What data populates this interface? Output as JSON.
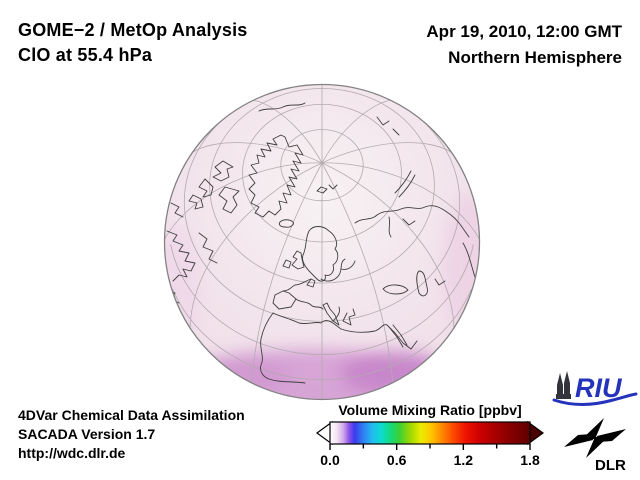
{
  "header": {
    "title_line1": "GOME−2 / MetOp Analysis",
    "title_line2": "ClO at 55.4 hPa",
    "datetime": "Apr 19, 2010, 12:00 GMT",
    "region": "Northern Hemisphere"
  },
  "footer": {
    "line1": "4DVar Chemical Data Assimilation",
    "line2": "SACADA Version 1.7",
    "line3": "http://wdc.dlr.de"
  },
  "logos": {
    "riu_text": "RIU",
    "dlr_text": "DLR",
    "riu_blue": "#2433bb"
  },
  "globe": {
    "projection": "orthographic globe, Northern Hemisphere centered near 60N over Europe/Atlantic",
    "visible_regions": [
      "Arctic / North Pole",
      "Greenland",
      "Canadian Arctic islands",
      "Iceland",
      "Scandinavia",
      "British Isles",
      "Europe",
      "Mediterranean",
      "North Africa",
      "Black Sea",
      "Caspian Sea",
      "Siberia"
    ]
  },
  "chart_data": {
    "type": "heatmap",
    "title": "GOME−2 / MetOp Analysis — ClO at 55.4 hPa",
    "datetime": "Apr 19, 2010, 12:00 GMT",
    "projection": "orthographic, Northern Hemisphere",
    "variable": "ClO volume mixing ratio",
    "units": "ppbv",
    "colorbar": {
      "label": "Volume Mixing Ratio [ppbv]",
      "min": 0.0,
      "max": 1.8,
      "major_ticks": [
        0.0,
        0.6,
        1.2,
        1.8
      ],
      "tick_labels": [
        "0.0",
        "0.6",
        "1.2",
        "1.8"
      ],
      "minor_ticks": [
        0.3,
        0.9,
        1.5
      ],
      "left_arrow_color": "#ffffff",
      "right_arrow_color": "#4c0000",
      "gradient_stops": [
        {
          "v": 0.0,
          "color": "#ffffff"
        },
        {
          "v": 0.06,
          "color": "#f4e4f4"
        },
        {
          "v": 0.12,
          "color": "#d2a8ec"
        },
        {
          "v": 0.17,
          "color": "#9055e8"
        },
        {
          "v": 0.22,
          "color": "#3a3aec"
        },
        {
          "v": 0.3,
          "color": "#2f80f2"
        },
        {
          "v": 0.38,
          "color": "#22bbf0"
        },
        {
          "v": 0.46,
          "color": "#0cdcd0"
        },
        {
          "v": 0.54,
          "color": "#14da80"
        },
        {
          "v": 0.62,
          "color": "#38d038"
        },
        {
          "v": 0.72,
          "color": "#9cd800"
        },
        {
          "v": 0.82,
          "color": "#ecec00"
        },
        {
          "v": 0.92,
          "color": "#ffc000"
        },
        {
          "v": 1.02,
          "color": "#ff8000"
        },
        {
          "v": 1.12,
          "color": "#fc4400"
        },
        {
          "v": 1.22,
          "color": "#ee1400"
        },
        {
          "v": 1.35,
          "color": "#cc0000"
        },
        {
          "v": 1.55,
          "color": "#980000"
        },
        {
          "v": 1.75,
          "color": "#6a0000"
        },
        {
          "v": 1.8,
          "color": "#600000"
        }
      ]
    },
    "field_summary": [
      {
        "region": "polar cap and high latitudes",
        "approx_value_ppbv": 0.04
      },
      {
        "region": "mid latitudes (Europe, N. Atlantic, Siberia)",
        "approx_value_ppbv": 0.08
      },
      {
        "region": "low latitudes near southern limb (N. Africa / Arabia)",
        "approx_value_ppbv": 0.15
      }
    ]
  }
}
